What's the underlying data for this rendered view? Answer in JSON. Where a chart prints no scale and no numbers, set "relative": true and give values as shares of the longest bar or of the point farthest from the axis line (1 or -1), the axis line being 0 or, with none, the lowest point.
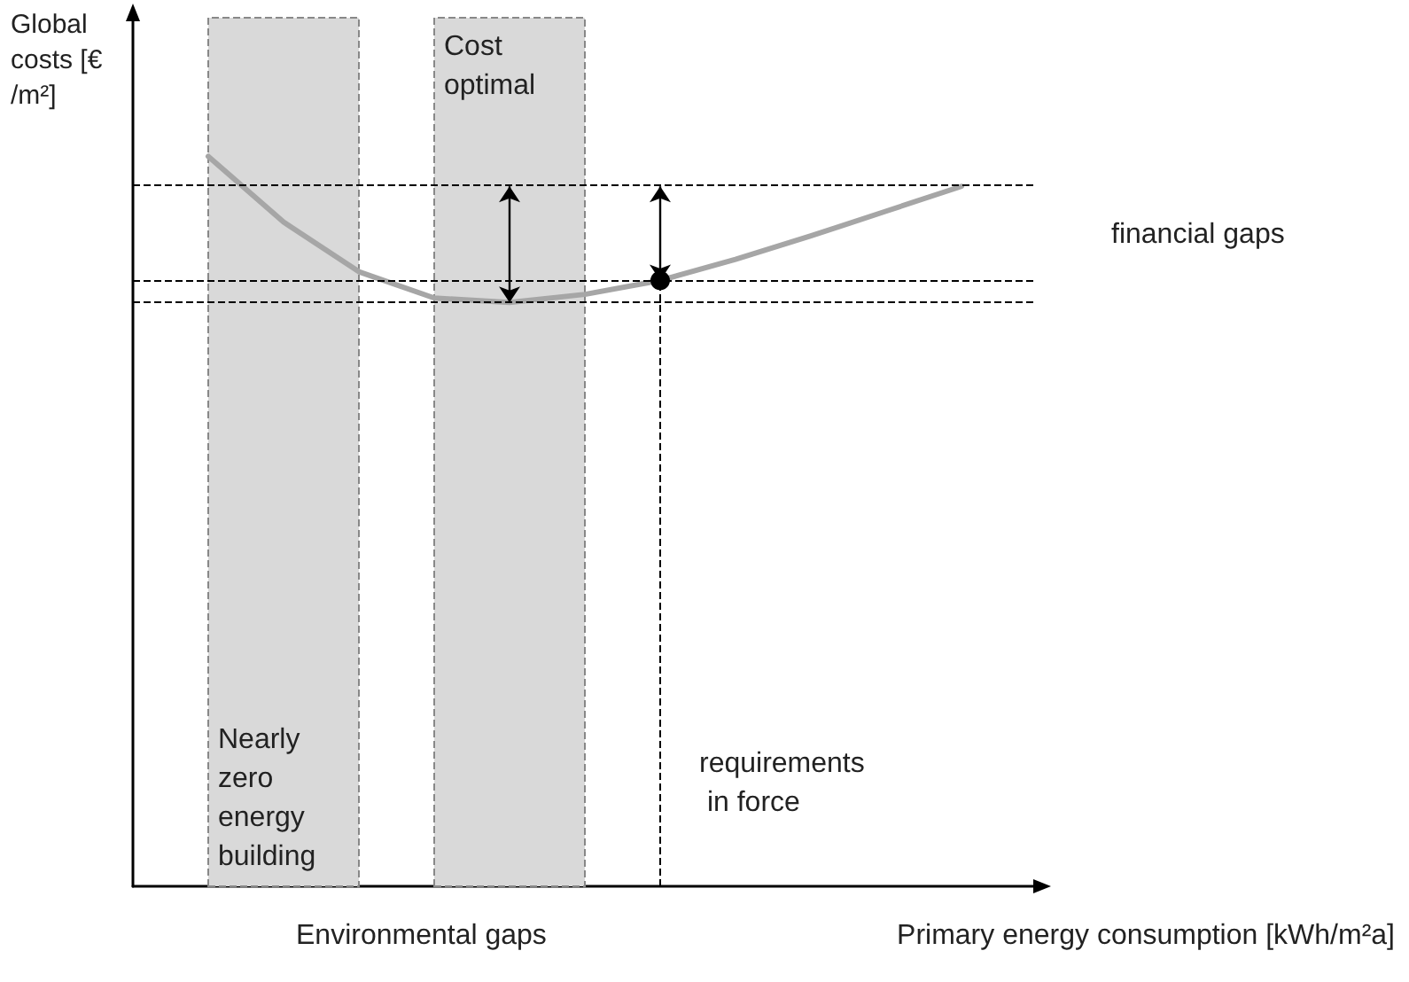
{
  "chart_data": {
    "type": "line",
    "relative": true,
    "xlabel": "Primary energy consumption [kWh/m²a]",
    "ylabel": "Global costs [€ /m²]",
    "categories": [
      null,
      null,
      null,
      null,
      null,
      null,
      null,
      null,
      null,
      null,
      null
    ],
    "grid": false,
    "marker": "none",
    "line_style": "solid",
    "series": [
      {
        "color": "#a6a6a6",
        "values": [
          1,
          0.91,
          0.842,
          0.806,
          0.8,
          0.811,
          0.83,
          0.859,
          0.891,
          0.925,
          0.959
        ]
      }
    ],
    "ref_lines": [
      {
        "axis": "y",
        "value": 0.959,
        "label": null,
        "color": "#000000",
        "line_style": "dashed"
      },
      {
        "axis": "y",
        "value": 0.83,
        "label": null,
        "color": "#000000",
        "line_style": "dashed"
      },
      {
        "axis": "y",
        "value": 0.8,
        "label": null,
        "color": "#000000",
        "line_style": "dashed"
      }
    ],
    "annotations": [
      "financial gaps",
      "Environmental gaps",
      "Nearly zero energy building",
      "Cost optimal",
      "requirements in force"
    ]
  }
}
